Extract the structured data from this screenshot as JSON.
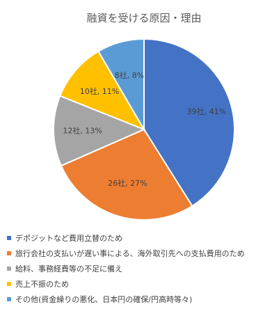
{
  "chart_data": {
    "type": "pie",
    "title": "融資を受ける原因・理由",
    "categories": [
      "デポジットなど費用立替のため",
      "旅行会社の支払いが遅い事による、海外取引先への支払費用のため",
      "給料、事務経費等の不足に備え",
      "売上不振のため",
      "その他(資金繰りの悪化、日本円の確保/円高時等々)"
    ],
    "values": [
      39,
      26,
      12,
      10,
      8
    ],
    "data_labels": [
      "39社, 41%",
      "26社, 27%",
      "12社, 13%",
      "10社, 11%",
      "8社, 8%"
    ],
    "colors": [
      "#4472C4",
      "#ED7D31",
      "#A5A5A5",
      "#FFC000",
      "#5B9BD5"
    ],
    "start_angle_deg": 0,
    "direction": "clockwise",
    "legend_position": "bottom"
  }
}
